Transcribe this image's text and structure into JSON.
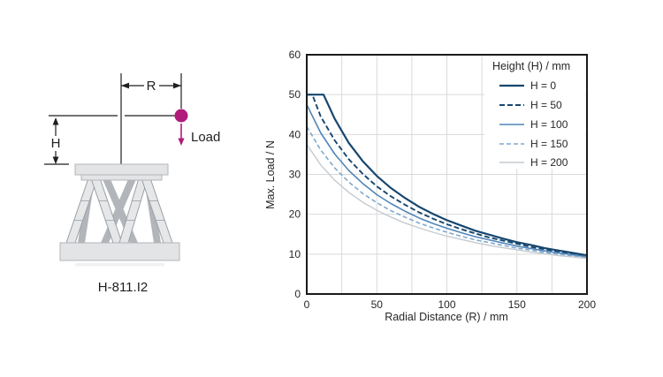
{
  "diagram": {
    "caption": "H-811.I2",
    "labels": {
      "radius": "R",
      "height": "H",
      "load": "Load"
    },
    "colors": {
      "load_marker": "#b01b7b",
      "line": "#1f1f1f",
      "plate": "#e3e4e6",
      "leg_light": "#e6e7e9",
      "leg_dark": "#b2b5b9"
    }
  },
  "chart_data": {
    "type": "line",
    "title": "",
    "xlabel": "Radial Distance (R) / mm",
    "ylabel": "Max. Load / N",
    "xlim": [
      0,
      200
    ],
    "ylim": [
      0,
      60
    ],
    "xticks": [
      0,
      50,
      100,
      150,
      200
    ],
    "yticks": [
      0,
      10,
      20,
      30,
      40,
      50,
      60
    ],
    "x_minor_grid_step": 25,
    "y_grid_step": 10,
    "grid_on": true,
    "grid_color": "#d9d9d9",
    "axis_color": "#1a1a1a",
    "text_color": "#262626",
    "legend": {
      "title": "Height (H) / mm",
      "position": "top-right-inside"
    },
    "series": [
      {
        "name": "H = 0",
        "color": "#17466e",
        "dash": "",
        "width": 2.2,
        "points": [
          [
            0,
            50
          ],
          [
            12,
            50
          ],
          [
            20,
            43.9
          ],
          [
            30,
            37.9
          ],
          [
            40,
            33.3
          ],
          [
            50,
            29.6
          ],
          [
            60,
            26.6
          ],
          [
            70,
            24.1
          ],
          [
            80,
            21.9
          ],
          [
            90,
            20.1
          ],
          [
            100,
            18.5
          ],
          [
            110,
            17.2
          ],
          [
            120,
            15.9
          ],
          [
            130,
            14.9
          ],
          [
            140,
            13.9
          ],
          [
            150,
            13.0
          ],
          [
            160,
            12.3
          ],
          [
            170,
            11.5
          ],
          [
            180,
            10.9
          ],
          [
            190,
            10.3
          ],
          [
            200,
            9.7
          ]
        ]
      },
      {
        "name": "H = 50",
        "color": "#17466e",
        "dash": "6 3",
        "width": 1.9,
        "points": [
          [
            0,
            50
          ],
          [
            4,
            50
          ],
          [
            10,
            44.5
          ],
          [
            20,
            38.5
          ],
          [
            30,
            33.8
          ],
          [
            40,
            30.1
          ],
          [
            50,
            27.0
          ],
          [
            60,
            24.5
          ],
          [
            70,
            22.4
          ],
          [
            80,
            20.5
          ],
          [
            90,
            18.9
          ],
          [
            100,
            17.5
          ],
          [
            110,
            16.3
          ],
          [
            120,
            15.2
          ],
          [
            130,
            14.2
          ],
          [
            140,
            13.4
          ],
          [
            150,
            12.6
          ],
          [
            160,
            11.8
          ],
          [
            170,
            11.2
          ],
          [
            180,
            10.6
          ],
          [
            190,
            10.0
          ],
          [
            200,
            9.5
          ]
        ]
      },
      {
        "name": "H = 100",
        "color": "#4f86b8",
        "dash": "",
        "width": 1.6,
        "points": [
          [
            0,
            47.5
          ],
          [
            10,
            40.4
          ],
          [
            20,
            35.1
          ],
          [
            30,
            31.0
          ],
          [
            40,
            27.7
          ],
          [
            50,
            24.9
          ],
          [
            60,
            22.7
          ],
          [
            70,
            20.8
          ],
          [
            80,
            19.1
          ],
          [
            90,
            17.7
          ],
          [
            100,
            16.5
          ],
          [
            110,
            15.4
          ],
          [
            120,
            14.4
          ],
          [
            130,
            13.6
          ],
          [
            140,
            12.8
          ],
          [
            150,
            12.0
          ],
          [
            160,
            11.4
          ],
          [
            170,
            10.8
          ],
          [
            180,
            10.3
          ],
          [
            190,
            9.8
          ],
          [
            200,
            9.3
          ]
        ]
      },
      {
        "name": "H = 150",
        "color": "#7ea9cd",
        "dash": "5 3",
        "width": 1.6,
        "points": [
          [
            0,
            42.0
          ],
          [
            10,
            36.1
          ],
          [
            20,
            31.6
          ],
          [
            30,
            28.1
          ],
          [
            40,
            25.2
          ],
          [
            50,
            22.9
          ],
          [
            60,
            20.9
          ],
          [
            70,
            19.3
          ],
          [
            80,
            17.8
          ],
          [
            90,
            16.6
          ],
          [
            100,
            15.5
          ],
          [
            110,
            14.5
          ],
          [
            120,
            13.6
          ],
          [
            130,
            12.9
          ],
          [
            140,
            12.2
          ],
          [
            150,
            11.5
          ],
          [
            160,
            11.0
          ],
          [
            170,
            10.4
          ],
          [
            180,
            10.0
          ],
          [
            190,
            9.5
          ],
          [
            200,
            9.1
          ]
        ]
      },
      {
        "name": "H = 200",
        "color": "#c4cad0",
        "dash": "",
        "width": 1.4,
        "points": [
          [
            0,
            37.5
          ],
          [
            10,
            32.4
          ],
          [
            20,
            28.5
          ],
          [
            30,
            25.5
          ],
          [
            40,
            23.0
          ],
          [
            50,
            21.0
          ],
          [
            60,
            19.3
          ],
          [
            70,
            17.8
          ],
          [
            80,
            16.6
          ],
          [
            90,
            15.5
          ],
          [
            100,
            14.5
          ],
          [
            110,
            13.7
          ],
          [
            120,
            12.9
          ],
          [
            130,
            12.2
          ],
          [
            140,
            11.6
          ],
          [
            150,
            11.1
          ],
          [
            160,
            10.5
          ],
          [
            170,
            10.1
          ],
          [
            180,
            9.6
          ],
          [
            190,
            9.3
          ],
          [
            200,
            8.9
          ]
        ]
      }
    ]
  }
}
